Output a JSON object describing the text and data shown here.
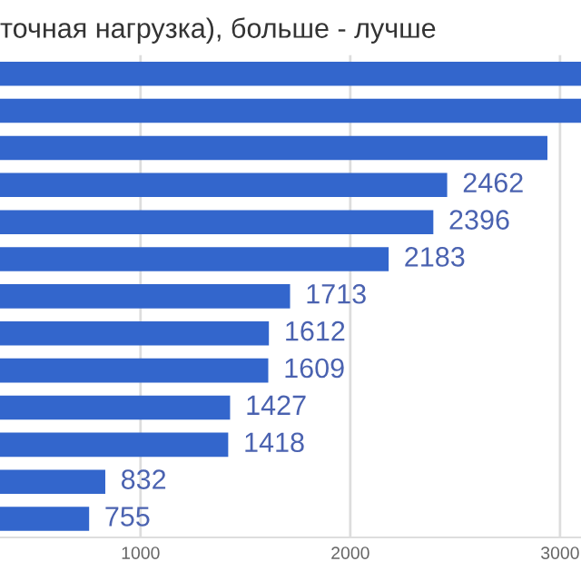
{
  "chart_data": {
    "type": "bar",
    "orientation": "horizontal",
    "title": "точная нагрузка), больше - лучше",
    "categories": [
      null,
      null,
      null,
      null,
      null,
      null,
      null,
      null,
      null,
      null,
      null,
      null,
      null
    ],
    "values": [
      3100,
      3100,
      2940,
      2462,
      2396,
      2183,
      1713,
      1612,
      1609,
      1427,
      1418,
      832,
      755
    ],
    "value_labels": [
      null,
      null,
      null,
      "2462",
      "2396",
      "2183",
      "1713",
      "1612",
      "1609",
      "1427",
      "1418",
      "832",
      "755"
    ],
    "color": "#3366cc",
    "xlim": [
      330,
      3100
    ],
    "xticks": [
      1000,
      2000,
      3000
    ],
    "grid": "x",
    "tick_labels": "x"
  }
}
